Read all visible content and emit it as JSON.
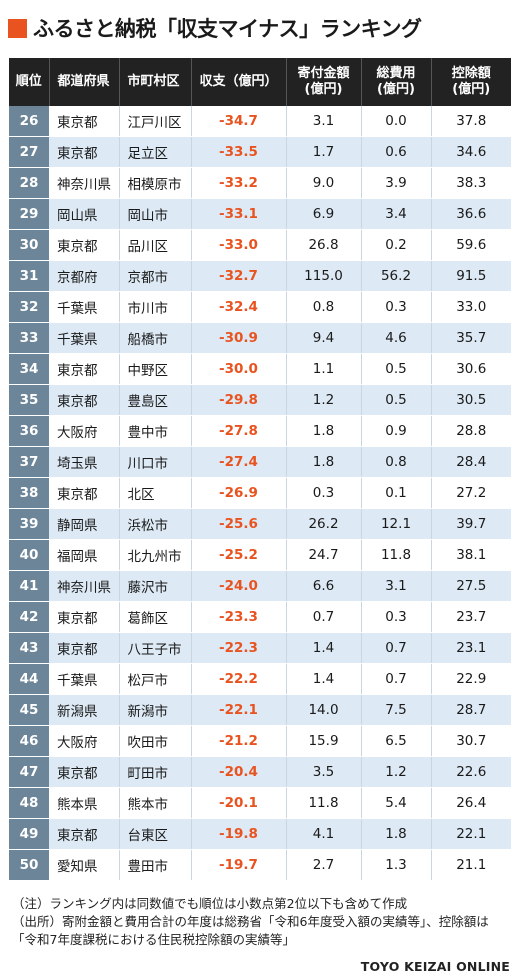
{
  "title": "ふるさと納税「収支マイナス」ランキング",
  "colors": {
    "accent": "#e8531f",
    "header_bg": "#222222",
    "rank_bg": "#6c8598",
    "stripe": "#ddeaf5"
  },
  "table": {
    "headers": {
      "rank": "順位",
      "pref": "都道府県",
      "city": "市町村区",
      "balance": "収支（億円）",
      "donation_1": "寄付金額",
      "donation_2": "(億円)",
      "cost_1": "総費用",
      "cost_2": "(億円)",
      "deduction_1": "控除額",
      "deduction_2": "(億円)"
    }
  },
  "chart_data": {
    "type": "table",
    "title": "ふるさと納税「収支マイナス」ランキング",
    "columns": [
      "順位",
      "都道府県",
      "市町村区",
      "収支（億円）",
      "寄付金額(億円)",
      "総費用(億円)",
      "控除額(億円)"
    ],
    "rows": [
      {
        "rank": "26",
        "pref": "東京都",
        "city": "江戸川区",
        "balance": "-34.7",
        "donation": "3.1",
        "cost": "0.0",
        "deduction": "37.8"
      },
      {
        "rank": "27",
        "pref": "東京都",
        "city": "足立区",
        "balance": "-33.5",
        "donation": "1.7",
        "cost": "0.6",
        "deduction": "34.6"
      },
      {
        "rank": "28",
        "pref": "神奈川県",
        "city": "相模原市",
        "balance": "-33.2",
        "donation": "9.0",
        "cost": "3.9",
        "deduction": "38.3"
      },
      {
        "rank": "29",
        "pref": "岡山県",
        "city": "岡山市",
        "balance": "-33.1",
        "donation": "6.9",
        "cost": "3.4",
        "deduction": "36.6"
      },
      {
        "rank": "30",
        "pref": "東京都",
        "city": "品川区",
        "balance": "-33.0",
        "donation": "26.8",
        "cost": "0.2",
        "deduction": "59.6"
      },
      {
        "rank": "31",
        "pref": "京都府",
        "city": "京都市",
        "balance": "-32.7",
        "donation": "115.0",
        "cost": "56.2",
        "deduction": "91.5"
      },
      {
        "rank": "32",
        "pref": "千葉県",
        "city": "市川市",
        "balance": "-32.4",
        "donation": "0.8",
        "cost": "0.3",
        "deduction": "33.0"
      },
      {
        "rank": "33",
        "pref": "千葉県",
        "city": "船橋市",
        "balance": "-30.9",
        "donation": "9.4",
        "cost": "4.6",
        "deduction": "35.7"
      },
      {
        "rank": "34",
        "pref": "東京都",
        "city": "中野区",
        "balance": "-30.0",
        "donation": "1.1",
        "cost": "0.5",
        "deduction": "30.6"
      },
      {
        "rank": "35",
        "pref": "東京都",
        "city": "豊島区",
        "balance": "-29.8",
        "donation": "1.2",
        "cost": "0.5",
        "deduction": "30.5"
      },
      {
        "rank": "36",
        "pref": "大阪府",
        "city": "豊中市",
        "balance": "-27.8",
        "donation": "1.8",
        "cost": "0.9",
        "deduction": "28.8"
      },
      {
        "rank": "37",
        "pref": "埼玉県",
        "city": "川口市",
        "balance": "-27.4",
        "donation": "1.8",
        "cost": "0.8",
        "deduction": "28.4"
      },
      {
        "rank": "38",
        "pref": "東京都",
        "city": "北区",
        "balance": "-26.9",
        "donation": "0.3",
        "cost": "0.1",
        "deduction": "27.2"
      },
      {
        "rank": "39",
        "pref": "静岡県",
        "city": "浜松市",
        "balance": "-25.6",
        "donation": "26.2",
        "cost": "12.1",
        "deduction": "39.7"
      },
      {
        "rank": "40",
        "pref": "福岡県",
        "city": "北九州市",
        "balance": "-25.2",
        "donation": "24.7",
        "cost": "11.8",
        "deduction": "38.1"
      },
      {
        "rank": "41",
        "pref": "神奈川県",
        "city": "藤沢市",
        "balance": "-24.0",
        "donation": "6.6",
        "cost": "3.1",
        "deduction": "27.5"
      },
      {
        "rank": "42",
        "pref": "東京都",
        "city": "葛飾区",
        "balance": "-23.3",
        "donation": "0.7",
        "cost": "0.3",
        "deduction": "23.7"
      },
      {
        "rank": "43",
        "pref": "東京都",
        "city": "八王子市",
        "balance": "-22.3",
        "donation": "1.4",
        "cost": "0.7",
        "deduction": "23.1"
      },
      {
        "rank": "44",
        "pref": "千葉県",
        "city": "松戸市",
        "balance": "-22.2",
        "donation": "1.4",
        "cost": "0.7",
        "deduction": "22.9"
      },
      {
        "rank": "45",
        "pref": "新潟県",
        "city": "新潟市",
        "balance": "-22.1",
        "donation": "14.0",
        "cost": "7.5",
        "deduction": "28.7"
      },
      {
        "rank": "46",
        "pref": "大阪府",
        "city": "吹田市",
        "balance": "-21.2",
        "donation": "15.9",
        "cost": "6.5",
        "deduction": "30.7"
      },
      {
        "rank": "47",
        "pref": "東京都",
        "city": "町田市",
        "balance": "-20.4",
        "donation": "3.5",
        "cost": "1.2",
        "deduction": "22.6"
      },
      {
        "rank": "48",
        "pref": "熊本県",
        "city": "熊本市",
        "balance": "-20.1",
        "donation": "11.8",
        "cost": "5.4",
        "deduction": "26.4"
      },
      {
        "rank": "49",
        "pref": "東京都",
        "city": "台東区",
        "balance": "-19.8",
        "donation": "4.1",
        "cost": "1.8",
        "deduction": "22.1"
      },
      {
        "rank": "50",
        "pref": "愛知県",
        "city": "豊田市",
        "balance": "-19.7",
        "donation": "2.7",
        "cost": "1.3",
        "deduction": "21.1"
      }
    ]
  },
  "notes": {
    "note1": "（注）ランキング内は同数値でも順位は小数点第2位以下も含めて作成",
    "source": "（出所）寄附金額と費用合計の年度は総務省「令和6年度受入額の実績等」、控除額は「令和7年度課税における住民税控除額の実績等」"
  },
  "brand": "TOYO KEIZAI ONLINE"
}
